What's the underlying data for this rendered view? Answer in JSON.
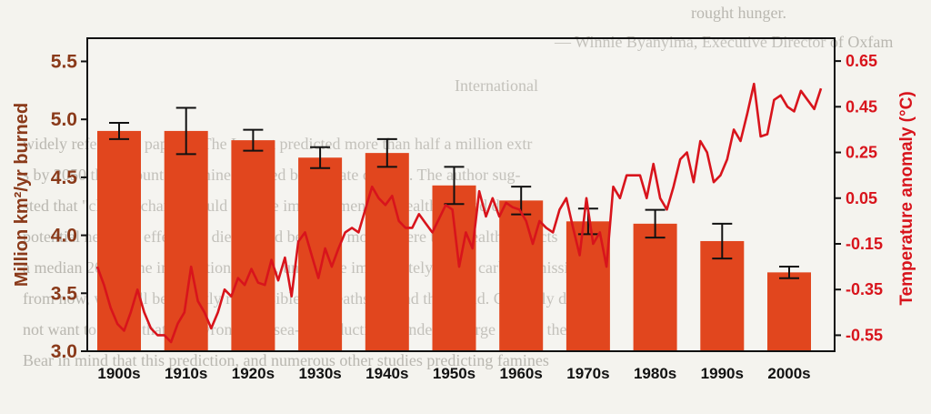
{
  "chart_data": {
    "type": "bar",
    "categories": [
      "1900s",
      "1910s",
      "1920s",
      "1930s",
      "1940s",
      "1950s",
      "1960s",
      "1970s",
      "1980s",
      "1990s",
      "2000s"
    ],
    "values": [
      4.9,
      4.9,
      4.82,
      4.67,
      4.71,
      4.43,
      4.3,
      4.12,
      4.1,
      3.95,
      3.68
    ],
    "errors": [
      0.07,
      0.2,
      0.09,
      0.09,
      0.12,
      0.16,
      0.12,
      0.11,
      0.12,
      0.15,
      0.05
    ],
    "bar_color": "#e1461e",
    "line_color": "#d8141c",
    "ylabel": "Million km²/yr burned",
    "ylim": [
      3.0,
      5.7
    ],
    "yticks": [
      "3.0",
      "3.5",
      "4.0",
      "4.5",
      "5.0",
      "5.5"
    ],
    "ytick_values": [
      3.0,
      3.5,
      4.0,
      4.5,
      5.0,
      5.5
    ],
    "y2label": "Temperature anomaly (°C)",
    "y2lim": [
      -0.62,
      0.75
    ],
    "y2ticks": [
      "-0.55",
      "-0.35",
      "-0.15",
      "0.05",
      "0.25",
      "0.45",
      "0.65"
    ],
    "y2tick_values": [
      -0.55,
      -0.35,
      -0.15,
      0.05,
      0.25,
      0.45,
      0.65
    ],
    "temperature_series": {
      "x": [
        1900,
        1901,
        1902,
        1903,
        1904,
        1905,
        1906,
        1907,
        1908,
        1909,
        1910,
        1911,
        1912,
        1913,
        1914,
        1915,
        1916,
        1917,
        1918,
        1919,
        1920,
        1921,
        1922,
        1923,
        1924,
        1925,
        1926,
        1927,
        1928,
        1929,
        1930,
        1931,
        1932,
        1933,
        1934,
        1935,
        1936,
        1937,
        1938,
        1939,
        1940,
        1941,
        1942,
        1943,
        1944,
        1945,
        1946,
        1947,
        1948,
        1949,
        1950,
        1951,
        1952,
        1953,
        1954,
        1955,
        1956,
        1957,
        1958,
        1959,
        1960,
        1961,
        1962,
        1963,
        1964,
        1965,
        1966,
        1967,
        1968,
        1969,
        1970,
        1971,
        1972,
        1973,
        1974,
        1975,
        1976,
        1977,
        1978,
        1979,
        1980,
        1981,
        1982,
        1983,
        1984,
        1985,
        1986,
        1987,
        1988,
        1989,
        1990,
        1991,
        1992,
        1993,
        1994,
        1995,
        1996,
        1997,
        1998,
        1999,
        2000,
        2001,
        2002,
        2003,
        2004,
        2005,
        2006,
        2007,
        2008
      ],
      "values": [
        -0.25,
        -0.33,
        -0.43,
        -0.5,
        -0.53,
        -0.45,
        -0.35,
        -0.45,
        -0.52,
        -0.55,
        -0.55,
        -0.58,
        -0.5,
        -0.45,
        -0.25,
        -0.4,
        -0.45,
        -0.52,
        -0.45,
        -0.35,
        -0.38,
        -0.3,
        -0.33,
        -0.26,
        -0.32,
        -0.33,
        -0.22,
        -0.31,
        -0.21,
        -0.38,
        -0.14,
        -0.1,
        -0.2,
        -0.3,
        -0.17,
        -0.25,
        -0.17,
        -0.1,
        -0.08,
        -0.1,
        0.0,
        0.1,
        0.05,
        0.02,
        0.06,
        -0.05,
        -0.08,
        -0.08,
        -0.02,
        -0.06,
        -0.1,
        -0.04,
        0.02,
        0.0,
        -0.25,
        -0.1,
        -0.17,
        0.08,
        -0.03,
        0.05,
        -0.03,
        0.03,
        0.01,
        0.0,
        -0.05,
        -0.15,
        -0.05,
        -0.08,
        -0.1,
        0.0,
        0.05,
        -0.08,
        -0.2,
        0.05,
        -0.15,
        -0.1,
        -0.25,
        0.1,
        0.05,
        0.15,
        0.15,
        0.15,
        0.05,
        0.2,
        0.05,
        0.0,
        0.1,
        0.22,
        0.25,
        0.12,
        0.3,
        0.25,
        0.12,
        0.15,
        0.22,
        0.35,
        0.3,
        0.42,
        0.55,
        0.32,
        0.33,
        0.48,
        0.5,
        0.45,
        0.43,
        0.52,
        0.48,
        0.44,
        0.53
      ]
    }
  },
  "background_text": [
    "rought hunger.",
    "— Winnie Byanyima, Executive Director of Oxfam",
    "International",
    "widely referenced paper in The Lancet predicted more than half a million extr",
    "s by 2050 the amount of famines caused by climate change. The author sug-",
    "sted that \"climate change could reverse improvements in health-related deaths",
    "potential negative effects on diets could be much more severe than health impacts",
    "a median 2050. The implication is that, unless we immediately lower carbon emissio",
    "from now, we shall be directly responsible for deaths around the world. Certainly do",
    "not want to assert that it is wrong, but sea-ice reduction is indeed a large part of the data",
    "Bear in mind that this prediction, and numerous other studies predicting famines"
  ]
}
